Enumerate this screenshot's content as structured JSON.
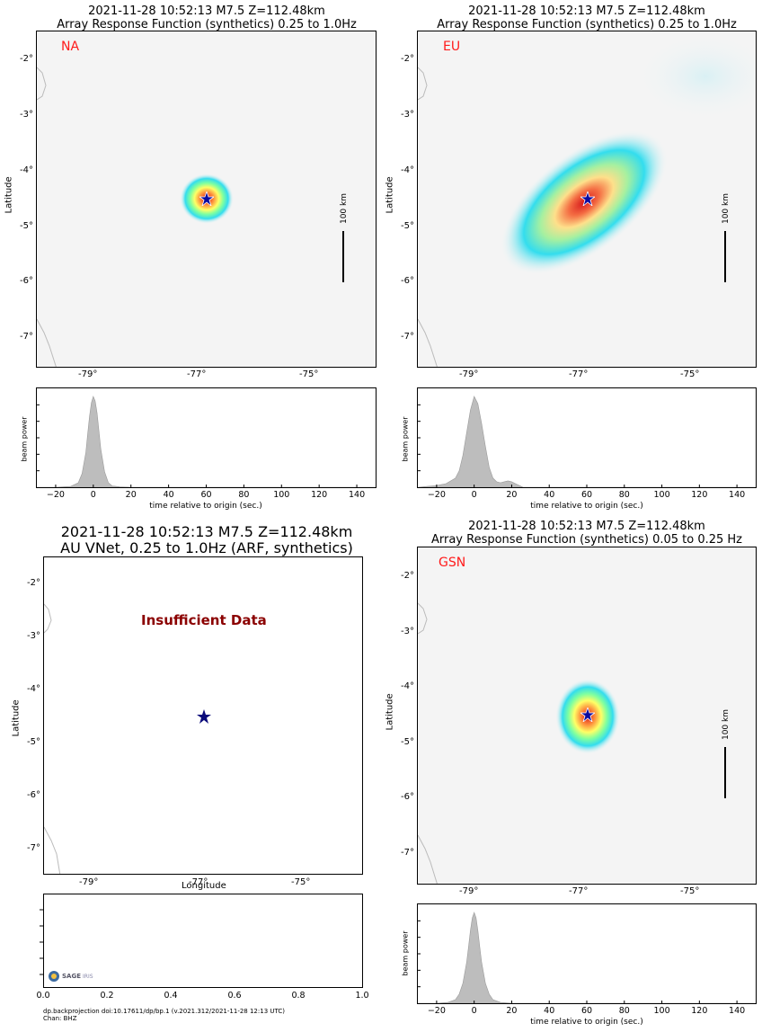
{
  "panels": [
    {
      "id": "na",
      "title_line1": "2021-11-28 10:52:13 M7.5 Z=112.48km",
      "title_line2": "Array Response Function (synthetics) 0.25 to 1.0Hz",
      "network": "NA",
      "scale_label": "100 km",
      "y_label": "Latitude",
      "lat_ticks": [
        "-2°",
        "-3°",
        "-4°",
        "-5°",
        "-6°",
        "-7°"
      ],
      "lon_ticks": [
        "-79°",
        "-77°",
        "-75°"
      ]
    },
    {
      "id": "eu",
      "title_line1": "2021-11-28 10:52:13 M7.5 Z=112.48km",
      "title_line2": "Array Response Function (synthetics) 0.25 to 1.0Hz",
      "network": "EU",
      "scale_label": "100 km",
      "y_label": "Latitude",
      "lat_ticks": [
        "-2°",
        "-3°",
        "-4°",
        "-5°",
        "-6°",
        "-7°"
      ],
      "lon_ticks": [
        "-79°",
        "-77°",
        "-75°"
      ]
    },
    {
      "id": "au",
      "title_line1": "2021-11-28 10:52:13 M7.5 Z=112.48km",
      "title_line2": "AU VNet, 0.25 to 1.0Hz (ARF, synthetics)",
      "message": "Insufficient Data",
      "y_label": "Latitude",
      "x_label": "Longitude",
      "lat_ticks": [
        "-2°",
        "-3°",
        "-4°",
        "-5°",
        "-6°",
        "-7°"
      ],
      "lon_ticks": [
        "-79°",
        "-77°",
        "-75°"
      ]
    },
    {
      "id": "gsn",
      "title_line1": "2021-11-28 10:52:13 M7.5 Z=112.48km",
      "title_line2": "Array Response Function (synthetics) 0.05 to 0.25 Hz",
      "network": "GSN",
      "scale_label": "100 km",
      "y_label": "Latitude",
      "lat_ticks": [
        "-2°",
        "-3°",
        "-4°",
        "-5°",
        "-6°",
        "-7°"
      ],
      "lon_ticks": [
        "-79°",
        "-77°",
        "-75°"
      ]
    }
  ],
  "beam": {
    "y_label": "beam power",
    "x_label": "time relative to origin (sec.)",
    "x_ticks": [
      "−20",
      "0",
      "20",
      "40",
      "60",
      "80",
      "100",
      "120",
      "140"
    ],
    "au_x_ticks": [
      "0.0",
      "0.2",
      "0.4",
      "0.6",
      "0.8",
      "1.0"
    ]
  },
  "credit": {
    "line1": "dp.backprojection doi:10.17611/dp/bp.1 (v.2021.312/2021-11-28 12:13 UTC)",
    "line2": "Chan: BHZ",
    "logo_text": "SAGE",
    "logo_sub": "IRIS"
  },
  "colors": {
    "network_label": "#ff1a1a",
    "insufficient": "#8b0000",
    "star": "#0a0aa0",
    "beam_fill": "#bdbdbd",
    "map_bg": "#f4f4f4"
  },
  "chart_data": [
    {
      "type": "area",
      "panel": "NA beam power",
      "xlabel": "time relative to origin (sec.)",
      "ylabel": "beam power",
      "xlim": [
        -30,
        150
      ],
      "ylim": [
        0,
        1.05
      ],
      "x": [
        -30,
        -20,
        -12,
        -8,
        -6,
        -4,
        -3,
        -2,
        -1,
        0,
        1,
        2,
        3,
        4,
        6,
        8,
        10,
        14,
        20,
        30,
        150
      ],
      "y": [
        0,
        0,
        0.01,
        0.05,
        0.15,
        0.38,
        0.58,
        0.78,
        0.93,
        1.0,
        0.95,
        0.82,
        0.62,
        0.42,
        0.17,
        0.05,
        0.015,
        0.005,
        0,
        0,
        0
      ]
    },
    {
      "type": "area",
      "panel": "EU beam power",
      "xlabel": "time relative to origin (sec.)",
      "ylabel": "beam power",
      "xlim": [
        -30,
        150
      ],
      "ylim": [
        0,
        1.05
      ],
      "x": [
        -30,
        -25,
        -20,
        -15,
        -10,
        -8,
        -6,
        -4,
        -2,
        0,
        2,
        4,
        6,
        8,
        10,
        12,
        14,
        16,
        18,
        20,
        22,
        24,
        26,
        150
      ],
      "y": [
        0,
        0.01,
        0.02,
        0.04,
        0.1,
        0.18,
        0.35,
        0.6,
        0.85,
        1.0,
        0.92,
        0.7,
        0.45,
        0.22,
        0.1,
        0.06,
        0.05,
        0.06,
        0.07,
        0.06,
        0.04,
        0.02,
        0,
        0
      ]
    },
    {
      "type": "area",
      "panel": "GSN beam power",
      "xlabel": "time relative to origin (sec.)",
      "ylabel": "beam power",
      "xlim": [
        -30,
        150
      ],
      "ylim": [
        0,
        1.05
      ],
      "x": [
        -30,
        -20,
        -14,
        -10,
        -8,
        -6,
        -4,
        -3,
        -2,
        -1,
        0,
        1,
        2,
        3,
        4,
        6,
        8,
        10,
        14,
        20,
        150
      ],
      "y": [
        0,
        0,
        0.01,
        0.04,
        0.1,
        0.22,
        0.45,
        0.62,
        0.8,
        0.94,
        1.0,
        0.94,
        0.8,
        0.62,
        0.45,
        0.22,
        0.1,
        0.04,
        0.01,
        0,
        0
      ]
    }
  ]
}
